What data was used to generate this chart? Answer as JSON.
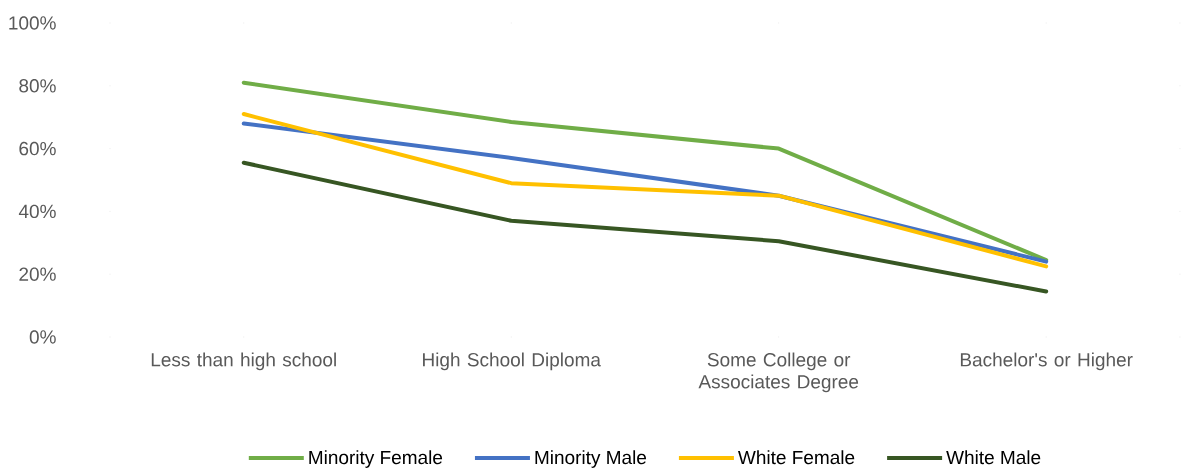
{
  "chart_data": {
    "type": "line",
    "categories": [
      "Less than high school",
      "High School Diploma",
      "Some College or Associates Degree",
      "Bachelor's or Higher"
    ],
    "series": [
      {
        "name": "Minority Female",
        "color": "#70ad47",
        "values": [
          81,
          68.5,
          60,
          24.5
        ]
      },
      {
        "name": "Minority Male",
        "color": "#4472c4",
        "values": [
          68,
          57,
          45,
          24
        ]
      },
      {
        "name": "White Female",
        "color": "#ffc000",
        "values": [
          71,
          49,
          45,
          22.5
        ]
      },
      {
        "name": "White Male",
        "color": "#375623",
        "values": [
          55.5,
          37,
          30.5,
          14.5
        ]
      }
    ],
    "ylim": [
      0,
      100
    ],
    "yticks": [
      {
        "value": 0,
        "label": "0%"
      },
      {
        "value": 20,
        "label": "20%"
      },
      {
        "value": 40,
        "label": "40%"
      },
      {
        "value": 60,
        "label": "60%"
      },
      {
        "value": 80,
        "label": "80%"
      },
      {
        "value": 100,
        "label": "100%"
      }
    ],
    "legend": "bottom"
  }
}
